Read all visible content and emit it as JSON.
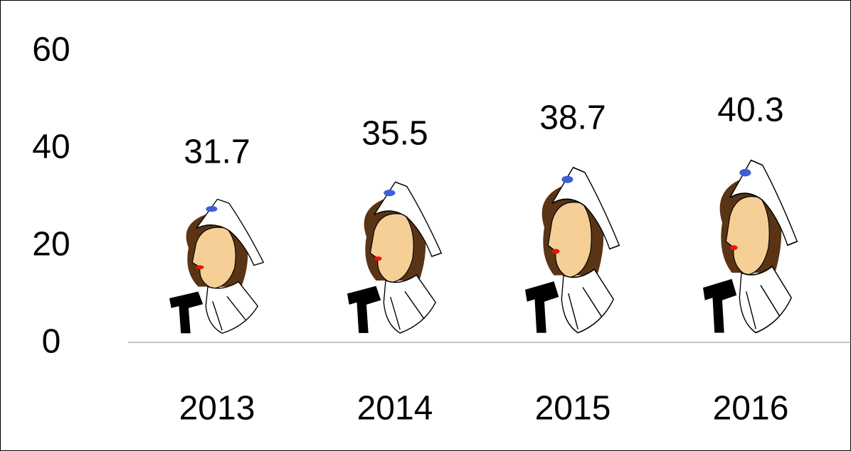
{
  "chart_data": {
    "type": "pictograph",
    "categories": [
      "2013",
      "2014",
      "2015",
      "2016"
    ],
    "values": [
      31.7,
      35.5,
      38.7,
      40.3
    ],
    "ylim": [
      0,
      60
    ],
    "yticks": [
      0,
      20,
      40,
      60
    ]
  }
}
